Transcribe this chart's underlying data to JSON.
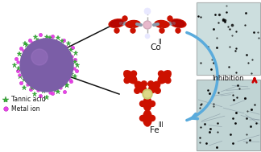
{
  "bg_color": "#ffffff",
  "sphere_color": "#7b5ea7",
  "star_color": "#3ab03a",
  "dot_color": "#e844e8",
  "co_label": "Co",
  "co_superscript": "II",
  "fe_label": "Fe",
  "fe_superscript": "III",
  "inhibition_label": "Inhibition",
  "arrow_color": "#5aabdc",
  "inhibition_arrow_color": "#cc0000",
  "legend_star_label": "Tannic acid",
  "legend_dot_label": "Metal ion",
  "panel_top_bg": "#ccdede",
  "panel_bot_bg": "#c0d4d4",
  "ring_color": "#cc1100",
  "chain_color": "#8899aa",
  "co_center_color": "#d4aabb",
  "fe_center_color": "#c8cc70",
  "water_color": "#e8e8ff"
}
